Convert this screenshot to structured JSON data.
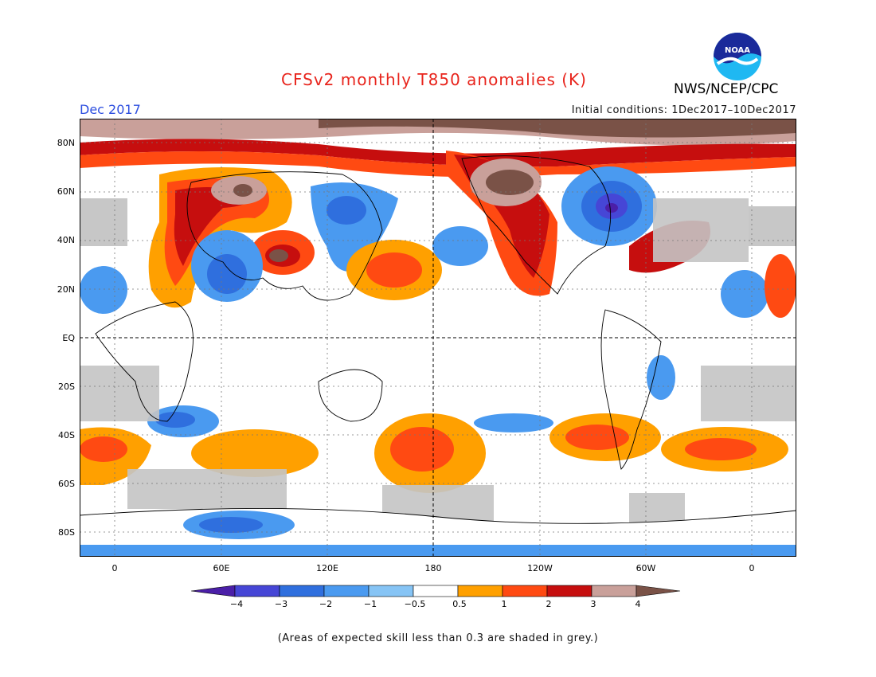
{
  "header": {
    "title": "CFSv2 monthly T850 anomalies (K)",
    "month": "Dec 2017",
    "initial_conditions": "Initial conditions: 1Dec2017–10Dec2017",
    "org": "NWS/NCEP/CPC",
    "logo_text": "NOAA",
    "logo_icon": "noaa-logo-icon"
  },
  "map": {
    "lat_labels": [
      "80N",
      "60N",
      "40N",
      "20N",
      "EQ",
      "20S",
      "40S",
      "60S",
      "80S"
    ],
    "lon_labels": [
      "0",
      "60E",
      "120E",
      "180",
      "120W",
      "60W",
      "0"
    ]
  },
  "colorbar": {
    "ticks": [
      "−4",
      "−3",
      "−2",
      "−1",
      "−0.5",
      "0.5",
      "1",
      "2",
      "3",
      "4"
    ],
    "colors": [
      "#4b1fa8",
      "#4646d6",
      "#2f6fde",
      "#4a9af0",
      "#86c4f5",
      "#ffffff",
      "#ffa000",
      "#ff4a12",
      "#c60e0e",
      "#c9a09a",
      "#7a5247"
    ]
  },
  "legend": {
    "grey_note": "(Areas of expected skill less than 0.3 are shaded in grey.)",
    "grey_color": "#c4c4c4"
  }
}
